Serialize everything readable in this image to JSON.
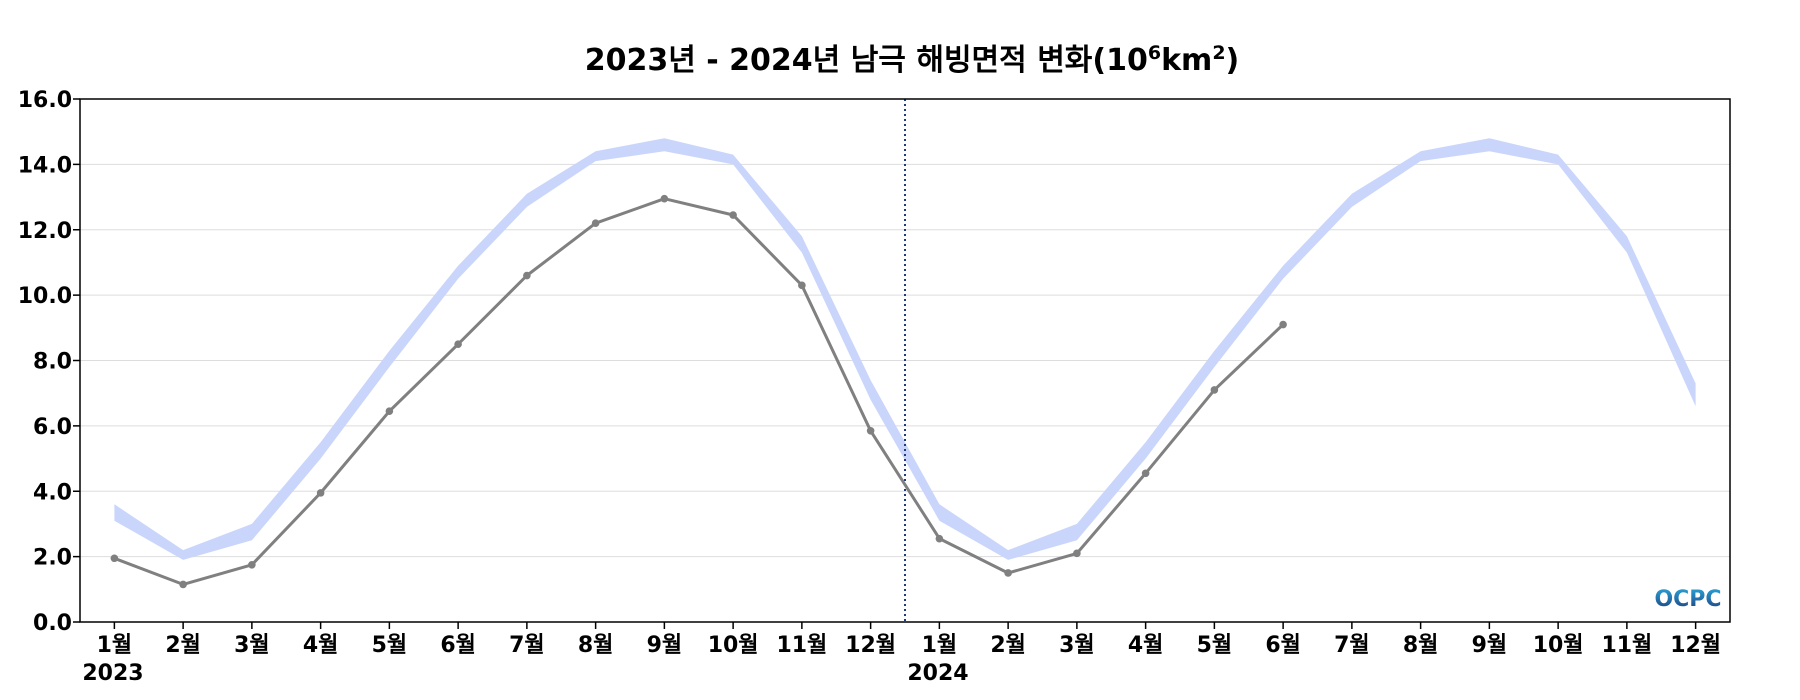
{
  "chart_data": {
    "type": "line",
    "title": "2023년 - 2024년 남극 해빙면적 변화(10⁶km²)",
    "xlabel": "",
    "ylabel": "",
    "ylim": [
      0,
      16
    ],
    "yticks": [
      "0.0",
      "2.0",
      "4.0",
      "6.0",
      "8.0",
      "10.0",
      "12.0",
      "14.0",
      "16.0"
    ],
    "categories": [
      "1월",
      "2월",
      "3월",
      "4월",
      "5월",
      "6월",
      "7월",
      "8월",
      "9월",
      "10월",
      "11월",
      "12월",
      "1월",
      "2월",
      "3월",
      "4월",
      "5월",
      "6월",
      "7월",
      "8월",
      "9월",
      "10월",
      "11월",
      "12월"
    ],
    "year_labels": [
      {
        "label": "2023",
        "index": 0
      },
      {
        "label": "2024",
        "index": 12
      }
    ],
    "divider_between": [
      11,
      12
    ],
    "grid": "horizontal",
    "series": [
      {
        "kind": "band",
        "color": "#c9d5fb",
        "lower": [
          3.1,
          1.9,
          2.5,
          5.0,
          7.8,
          10.5,
          12.7,
          14.1,
          14.4,
          14.0,
          11.3,
          6.8,
          3.1,
          1.9,
          2.5,
          5.0,
          7.8,
          10.5,
          12.7,
          14.1,
          14.4,
          14.0,
          11.3,
          6.6
        ],
        "upper": [
          3.6,
          2.2,
          3.0,
          5.5,
          8.3,
          10.9,
          13.1,
          14.4,
          14.8,
          14.3,
          11.8,
          7.4,
          3.6,
          2.2,
          3.0,
          5.5,
          8.3,
          10.9,
          13.1,
          14.4,
          14.8,
          14.3,
          11.8,
          7.3
        ]
      },
      {
        "kind": "line",
        "color": "#808080",
        "values": [
          1.95,
          1.15,
          1.75,
          3.95,
          6.45,
          8.5,
          10.6,
          12.2,
          12.95,
          12.45,
          10.3,
          5.85,
          2.55,
          1.5,
          2.1,
          4.55,
          7.1,
          9.1,
          null,
          null,
          null,
          null,
          null,
          null
        ]
      }
    ],
    "colors": {
      "divider": "#1f3a7a",
      "grid": "#dddddd",
      "axis": "#000000"
    }
  },
  "logo": {
    "text": "OCPC",
    "color_top": "#2aa5d8",
    "color_bottom": "#1f3a7a"
  }
}
